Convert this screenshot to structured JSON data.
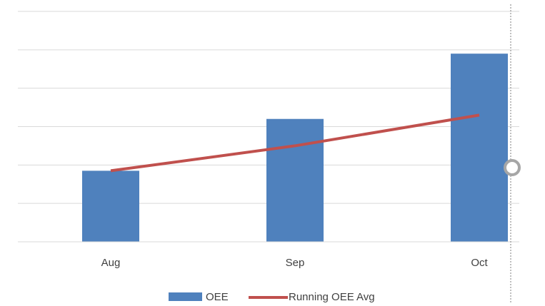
{
  "chart_data": {
    "type": "bar",
    "categories": [
      "Aug",
      "Sep",
      "Oct"
    ],
    "series": [
      {
        "name": "OEE",
        "kind": "bar",
        "values": [
          1.85,
          3.2,
          4.9
        ],
        "color": "#4F81BD"
      },
      {
        "name": "Running OEE Avg",
        "kind": "line",
        "values": [
          1.85,
          2.5,
          3.3
        ],
        "color": "#C0504D"
      }
    ],
    "ylim": [
      0,
      6
    ],
    "y_gridlines": [
      1,
      2,
      3,
      4,
      5,
      6
    ],
    "grid": true,
    "legend_position": "bottom",
    "title": "",
    "xlabel": "",
    "ylabel": ""
  },
  "colors": {
    "gridline": "#D9D9D9",
    "axis": "#D9D9D9",
    "tick_text": "#404040",
    "guide": "#7F7F7F",
    "handle": "#A6A6A6"
  }
}
